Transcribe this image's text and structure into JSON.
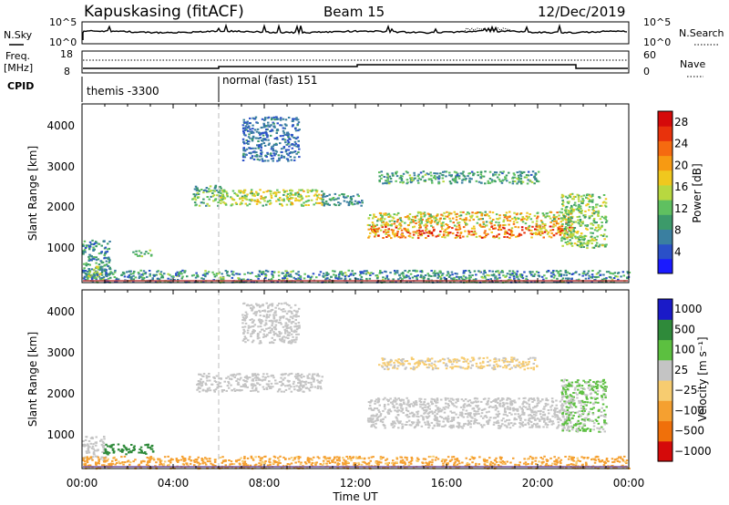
{
  "header": {
    "station": "Kapuskasing (fitACF)",
    "beam": "Beam 15",
    "date": "12/Dec/2019"
  },
  "noise_panel": {
    "left_label": "N.Sky",
    "right_label": "N.Search",
    "left_ticks": [
      "10^5",
      "10^0"
    ],
    "right_ticks": [
      "10^5",
      "10^0"
    ]
  },
  "freq_panel": {
    "left_label_1": "Freq.",
    "left_label_2": "[MHz]",
    "right_label": "Nave",
    "left_ticks": [
      "18",
      "8"
    ],
    "right_ticks": [
      "60",
      "0"
    ]
  },
  "cpid": {
    "label": "CPID",
    "segments": [
      "themis -3300",
      "normal (fast) 151"
    ]
  },
  "x_axis": {
    "label": "Time UT",
    "ticks": [
      "00:00",
      "04:00",
      "08:00",
      "12:00",
      "16:00",
      "20:00",
      "00:00"
    ]
  },
  "y_ticks": [
    "1000",
    "2000",
    "3000",
    "4000"
  ],
  "colors": {
    "power": [
      "#1a1aff",
      "#2a50c8",
      "#3a7fa0",
      "#3c9a6a",
      "#5fc060",
      "#b8d840",
      "#f0c81e",
      "#f79a12",
      "#f56a10",
      "#e8320c",
      "#d50a0a"
    ],
    "velocity_ground": "#c4c4c4"
  },
  "chart_data": [
    {
      "type": "heatmap",
      "name": "power",
      "ylabel": "Slant Range [km]",
      "cbar_label": "Power [dB]",
      "cbar_ticks": [
        "4",
        "8",
        "12",
        "16",
        "20",
        "24",
        "28"
      ],
      "cbar_range": [
        0,
        30
      ],
      "xlim_hours": [
        0,
        24
      ],
      "ylim_km": [
        180,
        4600
      ],
      "regions": [
        {
          "t": [
            0.0,
            1.2
          ],
          "r": [
            200,
            1250
          ],
          "p": [
            3,
            12
          ]
        },
        {
          "t": [
            0.0,
            0.8
          ],
          "r": [
            300,
            600
          ],
          "p": [
            10,
            18
          ]
        },
        {
          "t": [
            2.2,
            3.0
          ],
          "r": [
            850,
            1000
          ],
          "p": [
            6,
            14
          ]
        },
        {
          "t": [
            0.0,
            24.0
          ],
          "r": [
            200,
            500
          ],
          "p": [
            2,
            14
          ]
        },
        {
          "t": [
            4.8,
            6.2
          ],
          "r": [
            2100,
            2600
          ],
          "p": [
            4,
            16
          ]
        },
        {
          "t": [
            6.0,
            10.5
          ],
          "r": [
            2100,
            2500
          ],
          "p": [
            10,
            20
          ]
        },
        {
          "t": [
            10.5,
            12.3
          ],
          "r": [
            2100,
            2400
          ],
          "p": [
            4,
            12
          ]
        },
        {
          "t": [
            12.5,
            21.5
          ],
          "r": [
            1300,
            1600
          ],
          "p": [
            14,
            30
          ]
        },
        {
          "t": [
            12.5,
            21.5
          ],
          "r": [
            1600,
            1950
          ],
          "p": [
            10,
            24
          ]
        },
        {
          "t": [
            21.0,
            23.0
          ],
          "r": [
            1050,
            2400
          ],
          "p": [
            8,
            18
          ]
        },
        {
          "t": [
            13.0,
            20.0
          ],
          "r": [
            2650,
            2950
          ],
          "p": [
            4,
            14
          ]
        },
        {
          "t": [
            7.0,
            9.5
          ],
          "r": [
            3200,
            4300
          ],
          "p": [
            2,
            8
          ]
        }
      ]
    },
    {
      "type": "heatmap",
      "name": "velocity",
      "ylabel": "Slant Range [km]",
      "cbar_label": "Velocity [m s⁻¹]",
      "cbar_ticks": [
        "1000",
        "500",
        "100",
        "25",
        "−25",
        "−100",
        "−500",
        "−1000"
      ],
      "xlim_hours": [
        0,
        24
      ],
      "ylim_km": [
        180,
        4600
      ],
      "regions": [
        {
          "t": [
            0.0,
            1.0
          ],
          "r": [
            400,
            1000
          ],
          "v": [
            -25,
            25
          ]
        },
        {
          "t": [
            0.8,
            3.2
          ],
          "r": [
            550,
            800
          ],
          "v": [
            100,
            500
          ]
        },
        {
          "t": [
            0.0,
            24.0
          ],
          "r": [
            200,
            500
          ],
          "v": [
            -500,
            -25
          ]
        },
        {
          "t": [
            5.0,
            10.5
          ],
          "r": [
            2100,
            2550
          ],
          "v": [
            -25,
            25
          ]
        },
        {
          "t": [
            12.5,
            21.5
          ],
          "r": [
            1200,
            1950
          ],
          "v": [
            -25,
            25
          ]
        },
        {
          "t": [
            21.0,
            23.0
          ],
          "r": [
            1100,
            2400
          ],
          "v": [
            -25,
            100
          ]
        },
        {
          "t": [
            13.0,
            20.0
          ],
          "r": [
            2650,
            2950
          ],
          "v": [
            -100,
            25
          ]
        },
        {
          "t": [
            7.0,
            9.5
          ],
          "r": [
            3300,
            4300
          ],
          "v": [
            -25,
            25
          ]
        }
      ]
    }
  ]
}
